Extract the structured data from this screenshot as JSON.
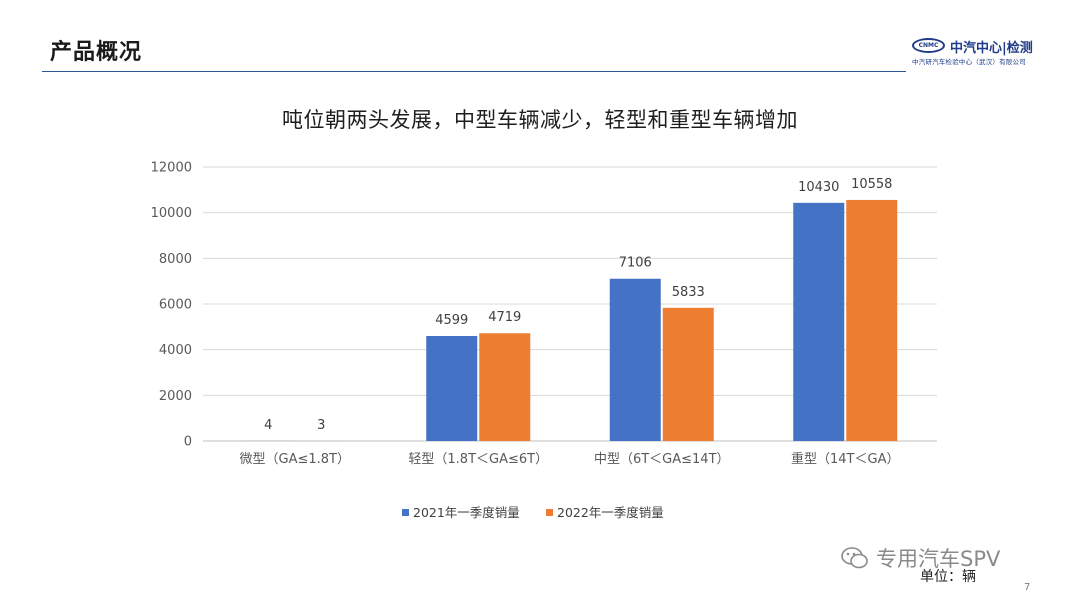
{
  "header": {
    "title": "产品概况",
    "logo_mark": "CNMC",
    "logo_name": "中汽中心|检测",
    "logo_subtitle": "中汽研汽车检验中心（武汉）有限公司"
  },
  "chart_data": {
    "type": "bar",
    "title": "吨位朝两头发展，中型车辆减少，轻型和重型车辆增加",
    "categories": [
      "微型（GA≤1.8T）",
      "轻型（1.8T＜GA≤6T）",
      "中型（6T＜GA≤14T）",
      "重型（14T＜GA）"
    ],
    "series": [
      {
        "name": "2021年一季度销量",
        "values": [
          4,
          4599,
          7106,
          10430
        ],
        "color": "#4472C4"
      },
      {
        "name": "2022年一季度销量",
        "values": [
          3,
          4719,
          5833,
          10558
        ],
        "color": "#ED7D31"
      }
    ],
    "ylim": [
      0,
      12000
    ],
    "yticks": [
      0,
      2000,
      4000,
      6000,
      8000,
      10000,
      12000
    ],
    "grid": true,
    "legend_position": "bottom",
    "xlabel": "",
    "ylabel": ""
  },
  "footer": {
    "watermark": "专用汽车SPV",
    "unit": "单位：辆",
    "page": "7"
  }
}
